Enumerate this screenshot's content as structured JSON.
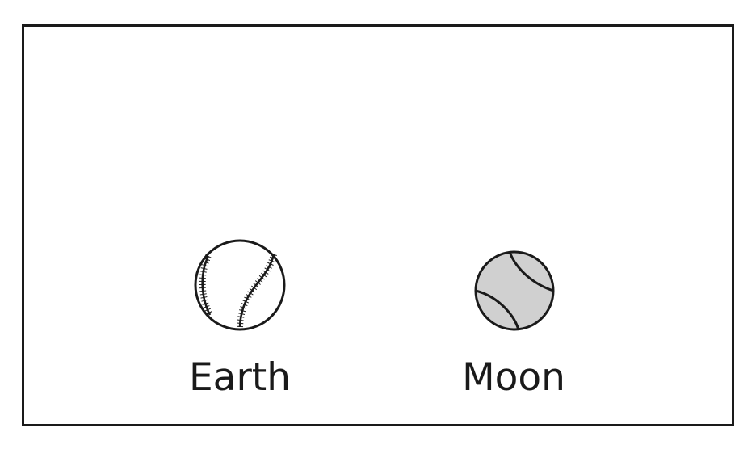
{
  "objects": [
    {
      "label": "Earth",
      "icon": "baseball-icon",
      "fill": "#ffffff",
      "stroke": "#1a1a1a"
    },
    {
      "label": "Moon",
      "icon": "tennis-ball-icon",
      "fill": "#d0d0d0",
      "stroke": "#1a1a1a"
    }
  ]
}
